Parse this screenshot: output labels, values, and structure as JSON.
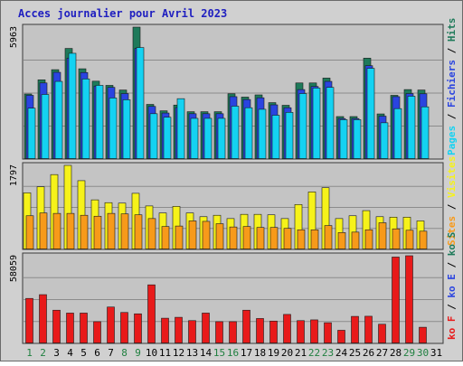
{
  "chart_data": {
    "type": "bar",
    "title": "Acces journalier pour Avril 2023",
    "days": [
      "1",
      "2",
      "3",
      "4",
      "5",
      "6",
      "7",
      "8",
      "9",
      "10",
      "11",
      "12",
      "13",
      "14",
      "15",
      "16",
      "17",
      "18",
      "19",
      "20",
      "21",
      "22",
      "23",
      "24",
      "25",
      "26",
      "27",
      "28",
      "29",
      "30",
      "31"
    ],
    "weekend_days": [
      "1",
      "2",
      "8",
      "9",
      "15",
      "16",
      "22",
      "23",
      "29",
      "30"
    ],
    "panels": [
      {
        "id": "top",
        "ymax_label": "5963",
        "ymax": 5963,
        "series": [
          {
            "name": "Hits",
            "color": "#1e7a5a",
            "values": [
              2940,
              3580,
              4040,
              5000,
              4080,
              3520,
              3330,
              3120,
              5963,
              2470,
              2180,
              2440,
              2140,
              2140,
              2140,
              2950,
              2800,
              2900,
              2550,
              2430,
              3440,
              3440,
              3660,
              1920,
              1920,
              4560,
              2040,
              2880,
              3140,
              3120,
              0
            ]
          },
          {
            "name": "Fichiers",
            "color": "#2a44e0",
            "values": [
              2880,
              3440,
              3920,
              4560,
              3910,
              3300,
              3240,
              2960,
              5000,
              2380,
              2080,
              2330,
              2050,
              2050,
              2050,
              2820,
              2690,
              2770,
              2450,
              2320,
              3140,
              3280,
              3510,
              1830,
              1830,
              4220,
              1940,
              2820,
              2960,
              2950,
              0
            ]
          },
          {
            "name": "Pages",
            "color": "#14d2f2",
            "values": [
              2300,
              2920,
              3510,
              4780,
              3620,
              3330,
              2760,
              2680,
              5040,
              2050,
              1890,
              2730,
              1840,
              1840,
              1840,
              2390,
              2320,
              2250,
              1980,
              2110,
              2960,
              3210,
              3240,
              1780,
              1780,
              4100,
              1640,
              2280,
              2840,
              2360,
              0
            ]
          }
        ]
      },
      {
        "id": "middle",
        "ymax_label": "1797",
        "ymax": 1797,
        "series": [
          {
            "name": "Visites",
            "color": "#f6f21a",
            "values": [
              1210,
              1340,
              1600,
              1797,
              1470,
              1060,
              1000,
              990,
              1200,
              930,
              780,
              920,
              780,
              700,
              730,
              660,
              750,
              750,
              740,
              660,
              960,
              1230,
              1320,
              660,
              720,
              830,
              700,
              690,
              690,
              610,
              0
            ]
          },
          {
            "name": "Sites",
            "color": "#f79a1a",
            "values": [
              720,
              780,
              770,
              770,
              730,
              710,
              770,
              760,
              740,
              660,
              490,
              500,
              610,
              600,
              550,
              480,
              490,
              470,
              470,
              450,
              420,
              420,
              510,
              360,
              370,
              420,
              570,
              440,
              410,
              390,
              0
            ]
          }
        ]
      },
      {
        "id": "bottom",
        "ymax_label": "58059",
        "ymax": 58059,
        "series": [
          {
            "name": "ko F",
            "color": "#e81a1a",
            "values": [
              29800,
              32300,
              22000,
              20100,
              20100,
              14400,
              24100,
              20500,
              19600,
              38800,
              16700,
              17300,
              15100,
              20100,
              14400,
              14400,
              22000,
              16500,
              14800,
              19200,
              15100,
              15600,
              13700,
              8700,
              17900,
              18000,
              12700,
              57200,
              58059,
              10700,
              0
            ]
          }
        ]
      }
    ],
    "legend_right": [
      {
        "label": "Hits",
        "color": "#1e7a5a"
      },
      {
        "label": "Fichiers",
        "color": "#2a44e0"
      },
      {
        "label": "Pages",
        "color": "#14d2f2"
      },
      {
        "label": "Visites",
        "color": "#f6f21a"
      },
      {
        "label": "Sites",
        "color": "#f79a1a"
      },
      {
        "label": "ko F",
        "color": "#e81a1a"
      },
      {
        "label": "ko E",
        "color": "#2a44e0"
      },
      {
        "label": "ko S",
        "color": "#1e7a5a"
      }
    ],
    "grid": true,
    "legend_position": "right-vertical"
  }
}
